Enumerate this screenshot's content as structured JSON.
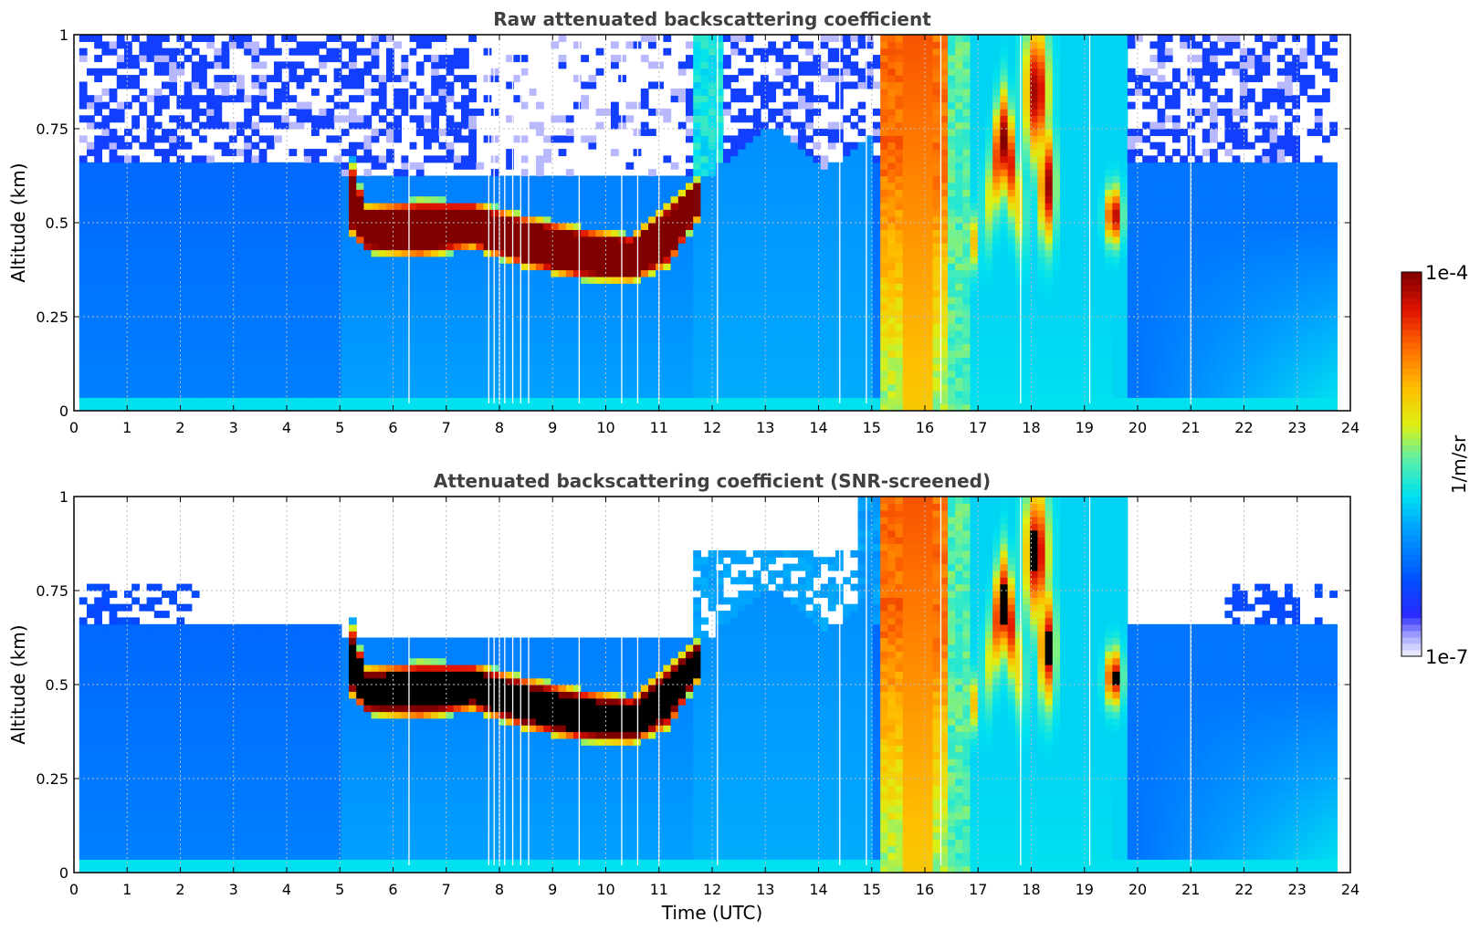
{
  "chart_data": [
    {
      "type": "heatmap",
      "title": "Raw attenuated backscattering coefficient",
      "xlabel": "",
      "ylabel": "Altitude (km)",
      "xlim": [
        0,
        24
      ],
      "ylim": [
        0,
        1
      ],
      "x_ticks": [
        "0",
        "1",
        "2",
        "3",
        "4",
        "5",
        "6",
        "7",
        "8",
        "9",
        "10",
        "11",
        "12",
        "13",
        "14",
        "15",
        "16",
        "17",
        "18",
        "19",
        "20",
        "21",
        "22",
        "23",
        "24"
      ],
      "y_ticks": [
        "0",
        "0.25",
        "0.5",
        "0.75",
        "1"
      ],
      "grid": true,
      "data_extent_x": [
        0.1,
        23.75
      ],
      "cloud_layer": [
        {
          "time": 5.2,
          "base": 0.5,
          "top": 0.64
        },
        {
          "time": 5.5,
          "base": 0.44,
          "top": 0.53
        },
        {
          "time": 6.5,
          "base": 0.43,
          "top": 0.54
        },
        {
          "time": 7.5,
          "base": 0.45,
          "top": 0.54
        },
        {
          "time": 8.5,
          "base": 0.4,
          "top": 0.5
        },
        {
          "time": 9.5,
          "base": 0.37,
          "top": 0.47
        },
        {
          "time": 10.5,
          "base": 0.36,
          "top": 0.45
        },
        {
          "time": 11.2,
          "base": 0.41,
          "top": 0.53
        },
        {
          "time": 11.7,
          "base": 0.52,
          "top": 0.6
        }
      ],
      "rain_interval": [
        15.1,
        16.5
      ],
      "screened": false
    },
    {
      "type": "heatmap",
      "title": "Attenuated backscattering coefficient (SNR-screened)",
      "xlabel": "Time (UTC)",
      "ylabel": "Altitude (km)",
      "xlim": [
        0,
        24
      ],
      "ylim": [
        0,
        1
      ],
      "x_ticks": [
        "0",
        "1",
        "2",
        "3",
        "4",
        "5",
        "6",
        "7",
        "8",
        "9",
        "10",
        "11",
        "12",
        "13",
        "14",
        "15",
        "16",
        "17",
        "18",
        "19",
        "20",
        "21",
        "22",
        "23",
        "24"
      ],
      "y_ticks": [
        "0",
        "0.25",
        "0.5",
        "0.75",
        "1"
      ],
      "grid": true,
      "data_extent_x": [
        0.1,
        23.75
      ],
      "screened": true,
      "saturated_color": "#000000"
    }
  ],
  "colorbar": {
    "label": "1/m/sr",
    "max_label": "1e-4",
    "min_label": "1e-7",
    "scale": "log",
    "range": [
      1e-07,
      0.0001
    ]
  }
}
